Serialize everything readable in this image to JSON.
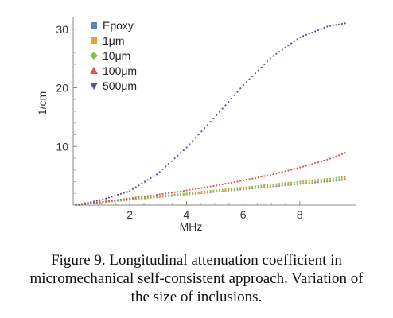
{
  "chart_data": {
    "type": "scatter",
    "title": "",
    "xlabel": "MHz",
    "ylabel": "1/cm",
    "xlim": [
      0,
      10
    ],
    "ylim": [
      0,
      32
    ],
    "xticks": [
      "2",
      "4",
      "6",
      "8"
    ],
    "yticks": [
      "10",
      "20",
      "30"
    ],
    "x_range": [
      0.1,
      9.6
    ],
    "legend_position": "top-left",
    "series": [
      {
        "name": "Epoxy",
        "marker": "square",
        "color": "#5b84b1",
        "x": [
          0.1,
          1,
          2,
          3,
          4,
          5,
          6,
          7,
          8,
          9,
          9.6
        ],
        "y": [
          0.0,
          0.45,
          0.9,
          1.35,
          1.8,
          2.25,
          2.7,
          3.15,
          3.6,
          4.05,
          4.32
        ]
      },
      {
        "name": "1μm",
        "marker": "square",
        "color": "#e8a23a",
        "x": [
          0.1,
          1,
          2,
          3,
          4,
          5,
          6,
          7,
          8,
          9,
          9.6
        ],
        "y": [
          0.0,
          0.47,
          0.93,
          1.4,
          1.87,
          2.33,
          2.8,
          3.27,
          3.73,
          4.2,
          4.48
        ]
      },
      {
        "name": "10μm",
        "marker": "diamond",
        "color": "#8dbd45",
        "x": [
          0.1,
          1,
          2,
          3,
          4,
          5,
          6,
          7,
          8,
          9,
          9.6
        ],
        "y": [
          0.0,
          0.5,
          1.0,
          1.5,
          2.0,
          2.5,
          3.0,
          3.5,
          4.0,
          4.5,
          4.8
        ]
      },
      {
        "name": "100μm",
        "marker": "triangle-up",
        "color": "#d9534f",
        "x": [
          0.1,
          1,
          2,
          3,
          4,
          5,
          6,
          7,
          8,
          9,
          9.6
        ],
        "y": [
          0.0,
          0.55,
          1.15,
          1.8,
          2.5,
          3.3,
          4.2,
          5.2,
          6.4,
          7.8,
          8.9
        ]
      },
      {
        "name": "500μm",
        "marker": "triangle-down",
        "color": "#6a4c9c",
        "x": [
          0.1,
          1,
          2,
          3,
          4,
          5,
          6,
          7,
          8,
          9,
          9.6
        ],
        "y": [
          0.0,
          0.9,
          2.4,
          5.4,
          9.8,
          15.0,
          20.4,
          25.2,
          28.6,
          30.5,
          31.0
        ]
      }
    ]
  },
  "caption": {
    "line1": "Figure 9. Longitudinal attenuation coefficient in",
    "line2": "micromechanical self-consistent approach. Variation of",
    "line3": "the size of inclusions."
  }
}
